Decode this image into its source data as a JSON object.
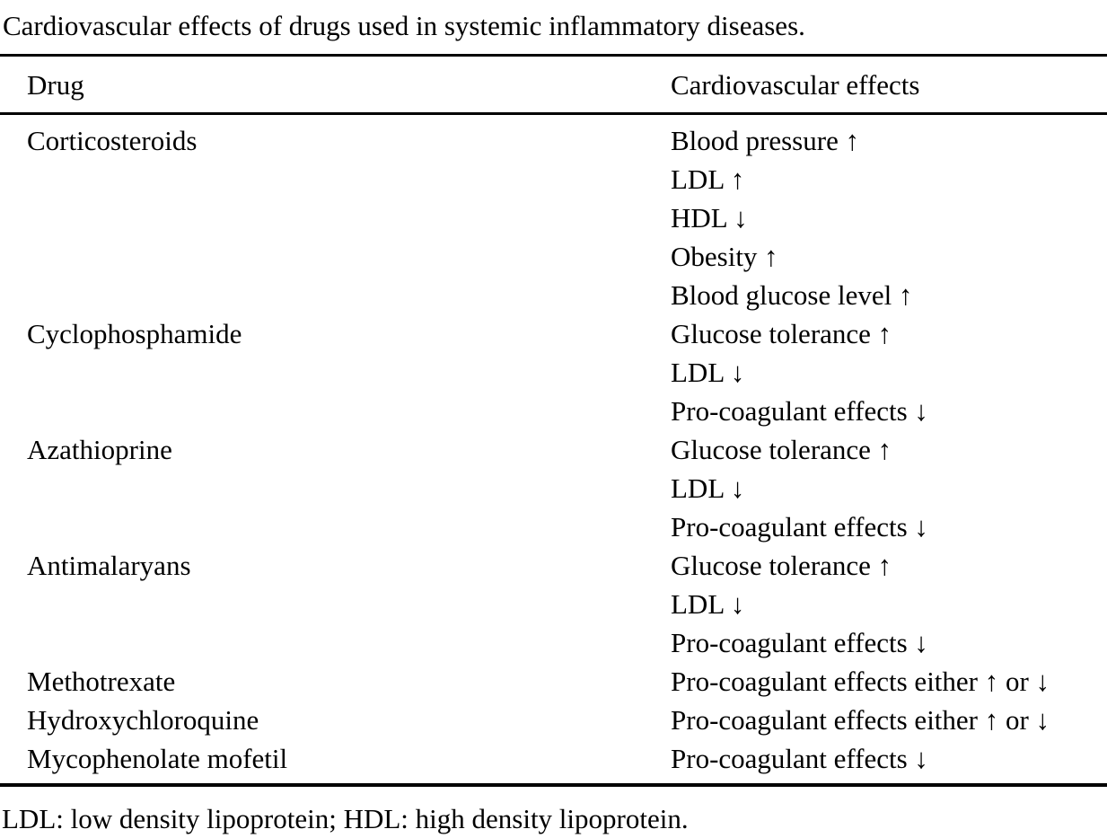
{
  "title": "Cardiovascular effects of drugs used in systemic inflammatory diseases.",
  "table": {
    "columns": [
      "Drug",
      "Cardiovascular effects"
    ],
    "rows": [
      {
        "drug": "Corticosteroids",
        "effects": [
          "Blood pressure ↑",
          "LDL ↑",
          "HDL ↓",
          "Obesity ↑",
          "Blood glucose level ↑"
        ]
      },
      {
        "drug": "Cyclophosphamide",
        "effects": [
          "Glucose tolerance ↑",
          "LDL ↓",
          "Pro-coagulant effects ↓"
        ]
      },
      {
        "drug": "Azathioprine",
        "effects": [
          "Glucose tolerance ↑",
          "LDL ↓",
          "Pro-coagulant effects ↓"
        ]
      },
      {
        "drug": "Antimalaryans",
        "effects": [
          "Glucose tolerance ↑",
          "LDL ↓",
          "Pro-coagulant effects ↓"
        ]
      },
      {
        "drug": "Methotrexate",
        "effects": [
          "Pro-coagulant effects either ↑ or ↓"
        ]
      },
      {
        "drug": "Hydroxychloroquine",
        "effects": [
          "Pro-coagulant effects either ↑ or ↓"
        ]
      },
      {
        "drug": "Mycophenolate mofetil",
        "effects": [
          "Pro-coagulant effects ↓"
        ]
      }
    ]
  },
  "footnote": "LDL: low density lipoprotein; HDL: high density lipoprotein.",
  "colors": {
    "text": "#000000",
    "background": "#ffffff",
    "rule": "#000000"
  }
}
